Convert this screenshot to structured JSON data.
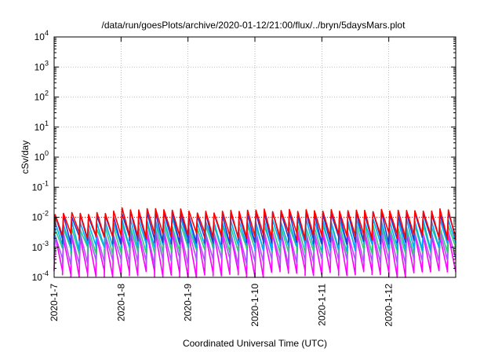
{
  "chart_data": {
    "type": "line",
    "title": "/data/run/goesPlots/archive/2020-01-12/21:00/flux/../bryn/5daysMars.plot",
    "xlabel": "Coordinated Universal Time (UTC)",
    "ylabel": "cSv/day",
    "y_scale": "log",
    "ylim_exponents": [
      -4,
      4
    ],
    "xlim_days": [
      0,
      6
    ],
    "x_start_date": "2020-01-07",
    "x_ticks": [
      "2020-1-7",
      "2020-1-8",
      "2020-1-9",
      "2020-1-10",
      "2020-1-11",
      "2020-1-12"
    ],
    "y_ticks": [
      {
        "base": "10",
        "exp": "-4"
      },
      {
        "base": "10",
        "exp": "-3"
      },
      {
        "base": "10",
        "exp": "-2"
      },
      {
        "base": "10",
        "exp": "-1"
      },
      {
        "base": "10",
        "exp": "0"
      },
      {
        "base": "10",
        "exp": "1"
      },
      {
        "base": "10",
        "exp": "2"
      },
      {
        "base": "10",
        "exp": "3"
      },
      {
        "base": "10",
        "exp": "4"
      }
    ],
    "grid": true,
    "legend": "none",
    "threshold_line": {
      "value": 0.01,
      "color": "#ff0000",
      "style": "dotted"
    },
    "sawtooth_period_days": 0.125,
    "series": [
      {
        "color": "#ff0000",
        "peak": 0.014,
        "trough": 0.0025
      },
      {
        "color": "#3333cc",
        "peak": 0.011,
        "trough": 0.0018
      },
      {
        "color": "#00aaff",
        "peak": 0.0065,
        "trough": 0.0011
      },
      {
        "color": "#33cc77",
        "peak": 0.0042,
        "trough": 0.0008
      },
      {
        "color": "#aa55ff",
        "peak": 0.0028,
        "trough": 0.00035
      },
      {
        "color": "#ff00ff",
        "peak": 0.0022,
        "trough": 0.00013
      }
    ],
    "daily_modulation": [
      1.0,
      1.35,
      1.15,
      1.2,
      1.25,
      1.2
    ]
  }
}
